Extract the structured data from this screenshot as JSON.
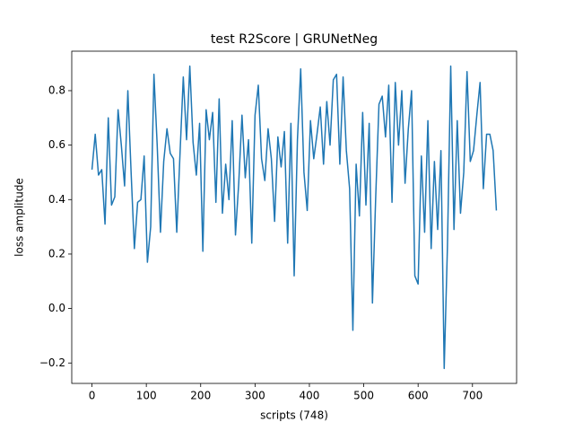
{
  "chart_data": {
    "type": "line",
    "title": "test R2Score | GRUNetNeg",
    "x_label": "scripts (748)",
    "y_label": "loss amplitude",
    "x": [
      0,
      6,
      12,
      18,
      24,
      30,
      36,
      42,
      48,
      54,
      60,
      66,
      72,
      78,
      84,
      90,
      96,
      102,
      108,
      114,
      120,
      126,
      132,
      138,
      144,
      150,
      156,
      162,
      168,
      174,
      180,
      186,
      192,
      198,
      204,
      210,
      216,
      222,
      228,
      234,
      240,
      246,
      252,
      258,
      264,
      270,
      276,
      282,
      288,
      294,
      300,
      306,
      312,
      318,
      324,
      330,
      336,
      342,
      348,
      354,
      360,
      366,
      372,
      378,
      384,
      390,
      396,
      402,
      408,
      414,
      420,
      426,
      432,
      438,
      444,
      450,
      456,
      462,
      468,
      474,
      480,
      486,
      492,
      498,
      504,
      510,
      516,
      522,
      528,
      534,
      540,
      546,
      552,
      558,
      564,
      570,
      576,
      582,
      588,
      594,
      600,
      606,
      612,
      618,
      624,
      630,
      636,
      642,
      648,
      654,
      660,
      666,
      672,
      678,
      684,
      690,
      696,
      702,
      708,
      714,
      720,
      726,
      732,
      738,
      744
    ],
    "series": [
      {
        "name": "R2Score",
        "color": "#1f77b4",
        "values": [
          0.51,
          0.64,
          0.49,
          0.51,
          0.31,
          0.7,
          0.38,
          0.41,
          0.73,
          0.6,
          0.45,
          0.8,
          0.5,
          0.22,
          0.39,
          0.4,
          0.56,
          0.17,
          0.3,
          0.86,
          0.6,
          0.28,
          0.54,
          0.66,
          0.57,
          0.55,
          0.28,
          0.57,
          0.85,
          0.62,
          0.89,
          0.61,
          0.49,
          0.68,
          0.21,
          0.73,
          0.62,
          0.72,
          0.39,
          0.77,
          0.35,
          0.53,
          0.4,
          0.69,
          0.27,
          0.46,
          0.71,
          0.48,
          0.62,
          0.24,
          0.71,
          0.82,
          0.55,
          0.47,
          0.66,
          0.55,
          0.32,
          0.63,
          0.52,
          0.65,
          0.24,
          0.68,
          0.12,
          0.62,
          0.88,
          0.5,
          0.36,
          0.69,
          0.55,
          0.64,
          0.74,
          0.53,
          0.76,
          0.6,
          0.84,
          0.86,
          0.53,
          0.85,
          0.58,
          0.44,
          -0.08,
          0.53,
          0.34,
          0.72,
          0.38,
          0.68,
          0.02,
          0.41,
          0.75,
          0.78,
          0.63,
          0.82,
          0.39,
          0.83,
          0.6,
          0.8,
          0.46,
          0.66,
          0.8,
          0.12,
          0.09,
          0.56,
          0.28,
          0.69,
          0.22,
          0.54,
          0.29,
          0.58,
          -0.22,
          0.23,
          0.89,
          0.29,
          0.69,
          0.35,
          0.5,
          0.87,
          0.54,
          0.58,
          0.71,
          0.83,
          0.44,
          0.64,
          0.64,
          0.58,
          0.36
        ]
      }
    ],
    "xlim": [
      -37.2,
      781.2
    ],
    "xticks": [
      0,
      100,
      200,
      300,
      400,
      500,
      600,
      700
    ],
    "ylim": [
      -0.275,
      0.945
    ],
    "yticks": [
      {
        "value": -0.2,
        "label": "−0.2"
      },
      {
        "value": 0,
        "label": "0.0"
      },
      0.2,
      0.4,
      0.6,
      0.8
    ]
  }
}
